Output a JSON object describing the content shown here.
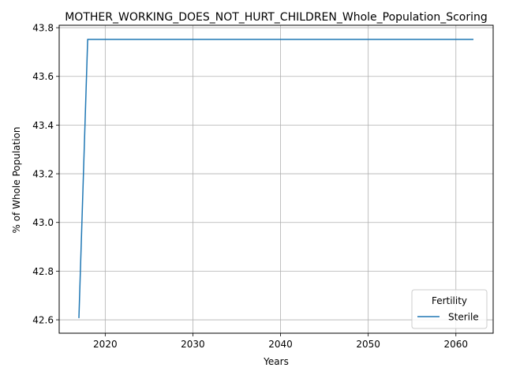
{
  "chart_data": {
    "type": "line",
    "title": "MOTHER_WORKING_DOES_NOT_HURT_CHILDREN_Whole_Population_Scoring",
    "xlabel": "Years",
    "ylabel": "% of Whole Population",
    "xlim": [
      2014.75,
      2064.25
    ],
    "ylim": [
      42.545,
      43.81
    ],
    "xticks": [
      2020,
      2030,
      2040,
      2050,
      2060
    ],
    "yticks": [
      42.6,
      42.8,
      43.0,
      43.2,
      43.4,
      43.6,
      43.8
    ],
    "ytick_labels": [
      "42.6",
      "42.8",
      "43.0",
      "43.2",
      "43.4",
      "43.6",
      "43.8"
    ],
    "grid": true,
    "legend": {
      "title": "Fertility",
      "placement": "lower-right"
    },
    "series": [
      {
        "name": "Sterile",
        "color": "#1f77b4",
        "x": [
          2017,
          2018,
          2062
        ],
        "y": [
          42.607,
          43.752,
          43.752
        ]
      }
    ]
  }
}
